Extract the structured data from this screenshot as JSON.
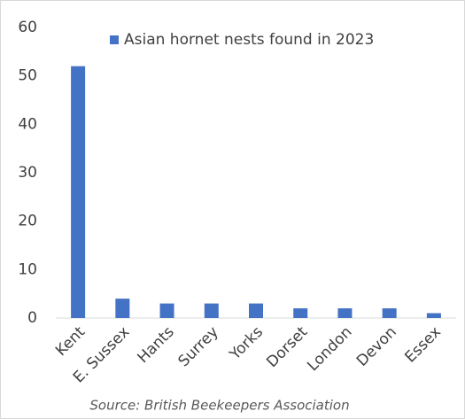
{
  "chart_data": {
    "type": "bar",
    "categories": [
      "Kent",
      "E. Sussex",
      "Hants",
      "Surrey",
      "Yorks",
      "Dorset",
      "London",
      "Devon",
      "Essex"
    ],
    "series": [
      {
        "name": "Asian hornet nests found in 2023",
        "color": "#4472c4",
        "values": [
          52,
          4,
          3,
          3,
          3,
          2,
          2,
          2,
          1
        ]
      }
    ],
    "ylim": [
      0,
      60
    ],
    "yticks": [
      0,
      10,
      20,
      30,
      40,
      50,
      60
    ],
    "grid": false,
    "legend": "top",
    "source": "Source: British Beekeepers Association"
  }
}
